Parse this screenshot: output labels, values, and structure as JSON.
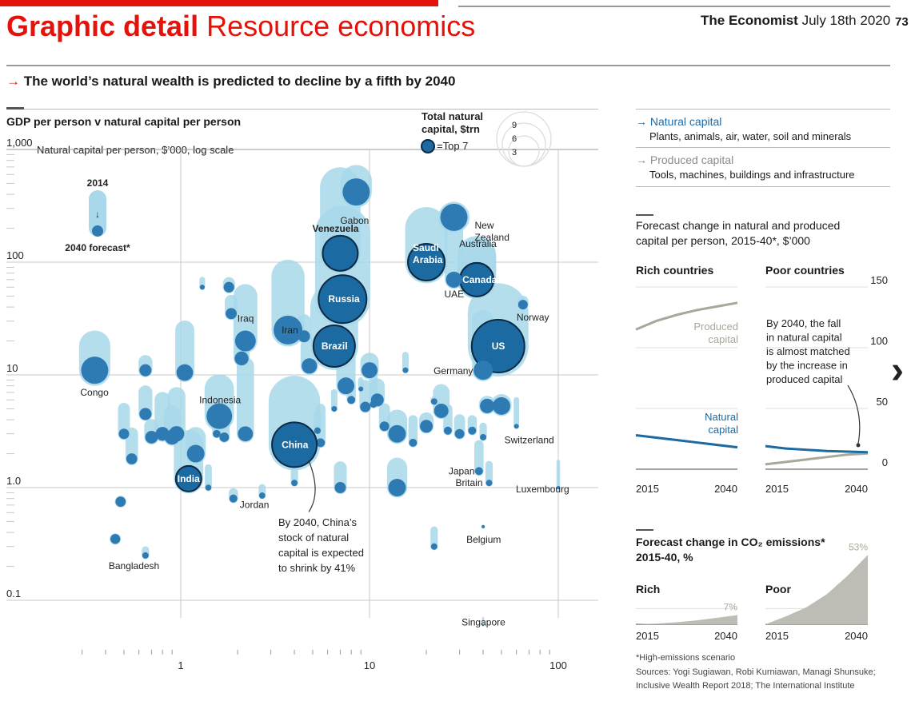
{
  "header": {
    "section_bold": "Graphic detail",
    "section_rest": "Resource economics",
    "publication": "The Economist",
    "date": "July 18th 2020",
    "page_number": "73",
    "brand_color": "#e3120b"
  },
  "headline": {
    "arrow": "→",
    "text": "The world’s natural wealth is predicted to decline by a fifth by 2040"
  },
  "scatter": {
    "title": "GDP per person v natural capital per person",
    "yaxis_note": "Natural capital per person, $’000, log scale",
    "size_legend": {
      "title_line1": "Total natural",
      "title_line2": "capital, $trn",
      "values": [
        "9",
        "6",
        "3"
      ],
      "top7": "=Top 7"
    },
    "key": {
      "year_top": "2014",
      "arrow": "↓",
      "year_bottom": "2040 forecast*"
    },
    "annotation": [
      "By 2040, China’s",
      "stock of natural",
      "capital is expected",
      "to shrink by 41%"
    ],
    "colors": {
      "top7": "#1b6aa1",
      "country": "#2e7bb4",
      "ghost": "#a8d8ea",
      "grid": "#c8c8c8"
    }
  },
  "panel_right": {
    "legend": {
      "natural_title": "Natural capital",
      "natural_desc": "Plants, animals, air, water, soil and minerals",
      "produced_title": "Produced capital",
      "produced_desc": "Tools, machines, buildings and infrastructure",
      "arrow": "→"
    },
    "forecast": {
      "title_line1": "Forecast change in natural and produced",
      "title_line2": "capital per person, 2015-40*, $’000",
      "rich_label": "Rich countries",
      "poor_label": "Poor countries",
      "produced_label": [
        "Produced",
        "capital"
      ],
      "natural_label": [
        "Natural",
        "capital"
      ],
      "note": [
        "By 2040, the fall",
        "in natural capital",
        "is almost matched",
        "by the increase in",
        "produced capital"
      ]
    },
    "co2": {
      "title_line1": "Forecast change in CO₂ emissions*",
      "title_line2": "2015-40, %",
      "rich_label": "Rich",
      "poor_label": "Poor",
      "rich_value": "7%",
      "poor_value": "53%"
    },
    "footnote": {
      "line1": "*High-emissions scenario",
      "line2": "Sources: Yogi Sugiawan, Robi Kurniawan, Managi Shunsuke;",
      "line3": "Inclusive Wealth Report 2018; The International Institute"
    },
    "nav_arrow": "›"
  },
  "chart_data": [
    {
      "type": "scatter",
      "title": "GDP per person v natural capital per person",
      "ylabel": "Natural capital per person, $’000, log scale",
      "xlabel": "",
      "xscale": "log",
      "yscale": "log",
      "xlim": [
        0.25,
        110
      ],
      "ylim": [
        0.07,
        1000
      ],
      "x_ticks": [
        "1",
        "10",
        "100"
      ],
      "x_tick_values": [
        1,
        10,
        100
      ],
      "y_ticks": [
        "1,000",
        "100",
        "10",
        "1.0",
        "0.1"
      ],
      "y_tick_values": [
        1000,
        100,
        10,
        1,
        0.1
      ],
      "grid": true,
      "named_points": [
        {
          "name": "Gabon",
          "x": 8.5,
          "y": 420,
          "y2014": 530,
          "top7": false
        },
        {
          "name": "New Zealand",
          "x": 28,
          "y": 250,
          "y2014": 250,
          "top7": false
        },
        {
          "name": "Venezuela",
          "x": 7.0,
          "y": 120,
          "y2014": 460,
          "top7": true
        },
        {
          "name": "Saudi Arabia",
          "x": 20,
          "y": 100,
          "y2014": 200,
          "top7": true
        },
        {
          "name": "Australia",
          "x": 37,
          "y": 70,
          "y2014": 115,
          "top7": true
        },
        {
          "name": "Canada",
          "x": 37,
          "y": 70,
          "y2014": 110,
          "top7": true
        },
        {
          "name": "UAE",
          "x": 28,
          "y": 70,
          "y2014": 190,
          "top7": false
        },
        {
          "name": "Russia",
          "x": 7.2,
          "y": 47,
          "y2014": 180,
          "top7": true
        },
        {
          "name": "Norway",
          "x": 65,
          "y": 42,
          "y2014": 45,
          "top7": false
        },
        {
          "name": "Iran",
          "x": 3.7,
          "y": 25,
          "y2014": 75,
          "top7": false
        },
        {
          "name": "Iraq",
          "x": 2.2,
          "y": 20,
          "y2014": 50,
          "top7": false
        },
        {
          "name": "Brazil",
          "x": 6.5,
          "y": 18,
          "y2014": 40,
          "top7": true
        },
        {
          "name": "US",
          "x": 48,
          "y": 18,
          "y2014": 35,
          "top7": true
        },
        {
          "name": "Congo",
          "x": 0.35,
          "y": 11,
          "y2014": 18,
          "top7": false
        },
        {
          "name": "Germany",
          "x": 40,
          "y": 11,
          "y2014": 30,
          "top7": false
        },
        {
          "name": "Indonesia",
          "x": 1.6,
          "y": 4.3,
          "y2014": 7.5,
          "top7": false
        },
        {
          "name": "Switzerland",
          "x": 60,
          "y": 3.5,
          "y2014": 6,
          "top7": false
        },
        {
          "name": "China",
          "x": 4.0,
          "y": 2.4,
          "y2014": 5.8,
          "top7": true
        },
        {
          "name": "India",
          "x": 1.1,
          "y": 1.2,
          "y2014": 2.4,
          "top7": true
        },
        {
          "name": "Japan",
          "x": 38,
          "y": 1.4,
          "y2014": 2.4,
          "top7": false
        },
        {
          "name": "Britain",
          "x": 43,
          "y": 1.1,
          "y2014": 1.6,
          "top7": false
        },
        {
          "name": "Luxembourg",
          "x": 100,
          "y": 1.0,
          "y2014": 1.7,
          "top7": false
        },
        {
          "name": "Jordan",
          "x": 1.9,
          "y": 0.8,
          "y2014": 0.9,
          "top7": false
        },
        {
          "name": "Belgium",
          "x": 40,
          "y": 0.45,
          "y2014": 0.45,
          "top7": false
        },
        {
          "name": "Bangladesh",
          "x": 0.65,
          "y": 0.25,
          "y2014": 0.28,
          "top7": false
        },
        {
          "name": "Singapore",
          "x": 40,
          "y": 0.06,
          "y2014": 0.07,
          "top7": false
        }
      ],
      "other_points": [
        {
          "x": 0.5,
          "y": 3.0,
          "y2014": 5.0
        },
        {
          "x": 0.55,
          "y": 1.8,
          "y2014": 3.0
        },
        {
          "x": 0.65,
          "y": 4.5,
          "y2014": 7.0
        },
        {
          "x": 0.7,
          "y": 2.8,
          "y2014": 3.5
        },
        {
          "x": 0.8,
          "y": 3.0,
          "y2014": 6.0
        },
        {
          "x": 0.9,
          "y": 2.8,
          "y2014": 4.5
        },
        {
          "x": 0.95,
          "y": 3.0,
          "y2014": 6.5
        },
        {
          "x": 1.05,
          "y": 10.5,
          "y2014": 25.0
        },
        {
          "x": 1.2,
          "y": 2.0,
          "y2014": 2.8
        },
        {
          "x": 1.4,
          "y": 1.0,
          "y2014": 1.5
        },
        {
          "x": 1.55,
          "y": 3.0,
          "y2014": 5.0
        },
        {
          "x": 1.7,
          "y": 2.8,
          "y2014": 3.5
        },
        {
          "x": 1.8,
          "y": 60,
          "y2014": 65
        },
        {
          "x": 1.85,
          "y": 35,
          "y2014": 45
        },
        {
          "x": 2.1,
          "y": 14,
          "y2014": 18
        },
        {
          "x": 2.2,
          "y": 3.0,
          "y2014": 12.0
        },
        {
          "x": 1.3,
          "y": 60,
          "y2014": 70
        },
        {
          "x": 0.65,
          "y": 11,
          "y2014": 13
        },
        {
          "x": 4.5,
          "y": 22,
          "y2014": 30
        },
        {
          "x": 4.8,
          "y": 12,
          "y2014": 18
        },
        {
          "x": 5.3,
          "y": 3.2,
          "y2014": 4.5
        },
        {
          "x": 5.5,
          "y": 2.5,
          "y2014": 5.0
        },
        {
          "x": 6.5,
          "y": 5.0,
          "y2014": 7.0
        },
        {
          "x": 7.5,
          "y": 8.0,
          "y2014": 16.0
        },
        {
          "x": 8.0,
          "y": 6.0,
          "y2014": 8.0
        },
        {
          "x": 9.0,
          "y": 7.5,
          "y2014": 9.0
        },
        {
          "x": 9.5,
          "y": 5.2,
          "y2014": 8.0
        },
        {
          "x": 10.0,
          "y": 11,
          "y2014": 13
        },
        {
          "x": 10.5,
          "y": 5.5,
          "y2014": 12.0
        },
        {
          "x": 11.0,
          "y": 6.0,
          "y2014": 8.0
        },
        {
          "x": 12.0,
          "y": 3.5,
          "y2014": 5.0
        },
        {
          "x": 14.0,
          "y": 3.0,
          "y2014": 4.0
        },
        {
          "x": 15.5,
          "y": 11,
          "y2014": 15
        },
        {
          "x": 17.0,
          "y": 2.5,
          "y2014": 4.0
        },
        {
          "x": 20.0,
          "y": 3.5,
          "y2014": 4.0
        },
        {
          "x": 22.0,
          "y": 5.8,
          "y2014": 6.0
        },
        {
          "x": 24.0,
          "y": 4.8,
          "y2014": 7.0
        },
        {
          "x": 26.0,
          "y": 3.2,
          "y2014": 5.0
        },
        {
          "x": 30.0,
          "y": 3.0,
          "y2014": 4.0
        },
        {
          "x": 35.0,
          "y": 3.2,
          "y2014": 4.0
        },
        {
          "x": 40.0,
          "y": 2.8,
          "y2014": 3.5
        },
        {
          "x": 42.0,
          "y": 5.3,
          "y2014": 5.5
        },
        {
          "x": 50.0,
          "y": 5.3,
          "y2014": 5.5
        },
        {
          "x": 0.48,
          "y": 0.75,
          "y2014": 0.75
        },
        {
          "x": 0.45,
          "y": 0.35,
          "y2014": 0.35
        },
        {
          "x": 7.0,
          "y": 1.0,
          "y2014": 1.5
        },
        {
          "x": 4.0,
          "y": 1.1,
          "y2014": 1.4
        },
        {
          "x": 2.7,
          "y": 0.85,
          "y2014": 1.0
        },
        {
          "x": 22.0,
          "y": 0.3,
          "y2014": 0.42
        },
        {
          "x": 14.0,
          "y": 1.0,
          "y2014": 1.5
        }
      ]
    },
    {
      "type": "line",
      "title": "Forecast change in natural and produced capital per person, 2015-40*, $’000",
      "subtitle": "Rich countries",
      "x": [
        2015,
        2020,
        2025,
        2030,
        2035,
        2040
      ],
      "x_ticks": [
        "2015",
        "2040"
      ],
      "ylim": [
        0,
        150
      ],
      "y_ticks": [
        "150",
        "100",
        "50",
        "0"
      ],
      "series": [
        {
          "name": "Produced capital",
          "color": "#a8a89a",
          "values": [
            115,
            122,
            127,
            131,
            134,
            137
          ]
        },
        {
          "name": "Natural capital",
          "color": "#1b6aa1",
          "values": [
            28,
            26,
            24,
            22,
            20,
            18
          ]
        }
      ]
    },
    {
      "type": "line",
      "title": "Forecast change in natural and produced capital per person, 2015-40*, $’000",
      "subtitle": "Poor countries",
      "x": [
        2015,
        2020,
        2025,
        2030,
        2035,
        2040
      ],
      "x_ticks": [
        "2015",
        "2040"
      ],
      "ylim": [
        0,
        150
      ],
      "y_ticks": [
        "150",
        "100",
        "50",
        "0"
      ],
      "series": [
        {
          "name": "Produced capital",
          "color": "#a8a89a",
          "values": [
            4,
            6,
            8,
            10,
            12,
            13
          ]
        },
        {
          "name": "Natural capital",
          "color": "#1b6aa1",
          "values": [
            19,
            17,
            16,
            15,
            14.5,
            14
          ]
        }
      ]
    },
    {
      "type": "area",
      "title": "Forecast change in CO₂ emissions* 2015-40, %",
      "subtitle": "Rich",
      "x": [
        2015,
        2020,
        2025,
        2030,
        2035,
        2040
      ],
      "x_ticks": [
        "2015",
        "2040"
      ],
      "values": [
        0,
        0.5,
        1.5,
        3,
        5,
        7
      ],
      "end_label": "7%",
      "color": "#bdbdb5",
      "ylim": [
        0,
        55
      ]
    },
    {
      "type": "area",
      "title": "Forecast change in CO₂ emissions* 2015-40, %",
      "subtitle": "Poor",
      "x": [
        2015,
        2020,
        2025,
        2030,
        2035,
        2040
      ],
      "x_ticks": [
        "2015",
        "2040"
      ],
      "values": [
        0,
        6,
        13,
        23,
        37,
        53
      ],
      "end_label": "53%",
      "color": "#bdbdb5",
      "ylim": [
        0,
        55
      ]
    }
  ]
}
